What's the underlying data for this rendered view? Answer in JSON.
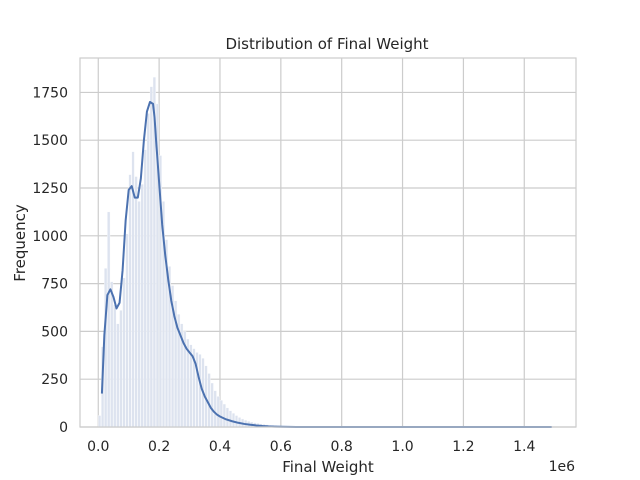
{
  "chart_data": {
    "type": "histogram",
    "title": "Distribution of Final Weight",
    "xlabel": "Final Weight",
    "ylabel": "Frequency",
    "x_offset_label": "1e6",
    "xlim": [
      -60000,
      1570000
    ],
    "ylim": [
      0,
      1930
    ],
    "xticks": [
      0,
      200000,
      400000,
      600000,
      800000,
      1000000,
      1200000,
      1400000
    ],
    "xtick_labels": [
      "0.0",
      "0.2",
      "0.4",
      "0.6",
      "0.8",
      "1.0",
      "1.2",
      "1.4"
    ],
    "yticks": [
      0,
      250,
      500,
      750,
      1000,
      1250,
      1500,
      1750
    ],
    "ytick_labels": [
      "0",
      "250",
      "500",
      "750",
      "1000",
      "1250",
      "1500",
      "1750"
    ],
    "grid": true,
    "colors": {
      "kde_line": "#4c72b0",
      "bars": "#dde3ef",
      "grid": "#cccccc",
      "frame": "#cccccc"
    },
    "histogram": {
      "bins": [
        {
          "x": 5000,
          "y": 60
        },
        {
          "x": 15000,
          "y": 420
        },
        {
          "x": 25000,
          "y": 830
        },
        {
          "x": 35000,
          "y": 1125
        },
        {
          "x": 45000,
          "y": 760
        },
        {
          "x": 55000,
          "y": 640
        },
        {
          "x": 65000,
          "y": 540
        },
        {
          "x": 75000,
          "y": 610
        },
        {
          "x": 85000,
          "y": 780
        },
        {
          "x": 95000,
          "y": 1010
        },
        {
          "x": 105000,
          "y": 1320
        },
        {
          "x": 115000,
          "y": 1440
        },
        {
          "x": 125000,
          "y": 1310
        },
        {
          "x": 135000,
          "y": 1180
        },
        {
          "x": 145000,
          "y": 1270
        },
        {
          "x": 155000,
          "y": 1450
        },
        {
          "x": 165000,
          "y": 1640
        },
        {
          "x": 175000,
          "y": 1780
        },
        {
          "x": 185000,
          "y": 1830
        },
        {
          "x": 195000,
          "y": 1690
        },
        {
          "x": 205000,
          "y": 1420
        },
        {
          "x": 215000,
          "y": 1180
        },
        {
          "x": 225000,
          "y": 980
        },
        {
          "x": 235000,
          "y": 840
        },
        {
          "x": 245000,
          "y": 740
        },
        {
          "x": 255000,
          "y": 660
        },
        {
          "x": 265000,
          "y": 590
        },
        {
          "x": 275000,
          "y": 540
        },
        {
          "x": 285000,
          "y": 500
        },
        {
          "x": 295000,
          "y": 460
        },
        {
          "x": 305000,
          "y": 430
        },
        {
          "x": 315000,
          "y": 410
        },
        {
          "x": 325000,
          "y": 390
        },
        {
          "x": 335000,
          "y": 380
        },
        {
          "x": 345000,
          "y": 360
        },
        {
          "x": 355000,
          "y": 320
        },
        {
          "x": 365000,
          "y": 280
        },
        {
          "x": 375000,
          "y": 230
        },
        {
          "x": 385000,
          "y": 190
        },
        {
          "x": 395000,
          "y": 160
        },
        {
          "x": 405000,
          "y": 140
        },
        {
          "x": 415000,
          "y": 120
        },
        {
          "x": 425000,
          "y": 100
        },
        {
          "x": 435000,
          "y": 85
        },
        {
          "x": 445000,
          "y": 72
        },
        {
          "x": 455000,
          "y": 60
        },
        {
          "x": 465000,
          "y": 50
        },
        {
          "x": 475000,
          "y": 42
        },
        {
          "x": 485000,
          "y": 36
        },
        {
          "x": 495000,
          "y": 30
        },
        {
          "x": 505000,
          "y": 26
        },
        {
          "x": 515000,
          "y": 22
        },
        {
          "x": 525000,
          "y": 19
        },
        {
          "x": 535000,
          "y": 16
        },
        {
          "x": 545000,
          "y": 14
        },
        {
          "x": 555000,
          "y": 12
        },
        {
          "x": 565000,
          "y": 10
        },
        {
          "x": 575000,
          "y": 9
        },
        {
          "x": 585000,
          "y": 8
        },
        {
          "x": 595000,
          "y": 7
        }
      ]
    },
    "kde": {
      "x": [
        12000,
        20000,
        30000,
        40000,
        50000,
        60000,
        70000,
        80000,
        90000,
        100000,
        110000,
        120000,
        130000,
        140000,
        150000,
        160000,
        170000,
        180000,
        185000,
        190000,
        200000,
        210000,
        220000,
        230000,
        240000,
        250000,
        260000,
        270000,
        280000,
        290000,
        300000,
        310000,
        320000,
        330000,
        340000,
        350000,
        360000,
        370000,
        380000,
        390000,
        400000,
        420000,
        440000,
        460000,
        480000,
        500000,
        520000,
        540000,
        560000,
        580000,
        600000,
        650000,
        700000,
        800000,
        900000,
        1000000,
        1100000,
        1200000,
        1300000,
        1400000,
        1490000
      ],
      "y": [
        175,
        480,
        690,
        720,
        680,
        620,
        650,
        820,
        1080,
        1240,
        1260,
        1200,
        1200,
        1300,
        1500,
        1650,
        1700,
        1690,
        1620,
        1500,
        1280,
        1060,
        900,
        770,
        660,
        580,
        520,
        480,
        440,
        410,
        390,
        370,
        330,
        260,
        200,
        160,
        130,
        100,
        80,
        65,
        55,
        40,
        30,
        22,
        16,
        12,
        8,
        5,
        3,
        2,
        1,
        0,
        0,
        0,
        0,
        0,
        0,
        0,
        0,
        0,
        0
      ]
    }
  }
}
